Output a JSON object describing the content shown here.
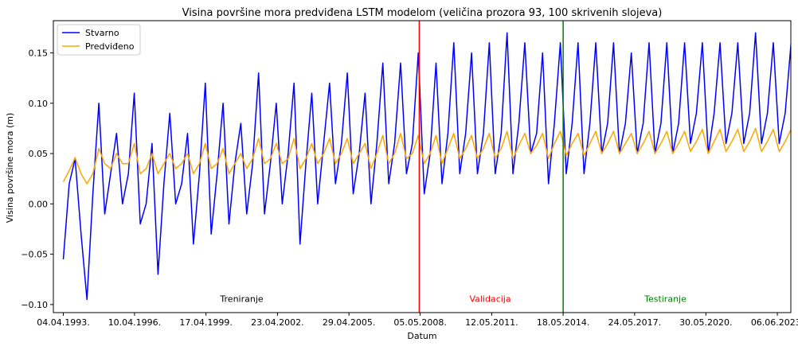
{
  "chart_data": {
    "type": "line",
    "title": "Visina površine mora predviđena LSTM modelom (veličina prozora 93, 100 skrivenih slojeva)",
    "xlabel": "Datum",
    "ylabel": "Visina površine mora (m)",
    "xlim": [
      "1992-11-01",
      "2023-12-31"
    ],
    "ylim": [
      -0.108,
      0.182
    ],
    "x_ticks": [
      "04.04.1993.",
      "10.04.1996.",
      "17.04.1999.",
      "23.04.2002.",
      "29.04.2005.",
      "05.05.2008.",
      "12.05.2011.",
      "18.05.2014.",
      "24.05.2017.",
      "30.05.2020.",
      "06.06.2023."
    ],
    "y_ticks": [
      "−0.10",
      "−0.05",
      "0.00",
      "0.05",
      "0.10",
      "0.15"
    ],
    "y_tick_values": [
      -0.1,
      -0.05,
      0.0,
      0.05,
      0.1,
      0.15
    ],
    "x_tick_years": [
      1993.26,
      1996.27,
      1999.29,
      2002.31,
      2005.33,
      2008.34,
      2011.36,
      2014.38,
      2017.4,
      2020.41,
      2023.43
    ],
    "legend": {
      "position": "top-left",
      "entries": [
        "Stvarno",
        "Predviđeno"
      ]
    },
    "grid": false,
    "series": [
      {
        "name": "Stvarno",
        "color": "#0000ff",
        "sample_step_years": 0.25,
        "x_start_year": 1993.26,
        "values": [
          -0.055,
          0.02,
          0.045,
          -0.03,
          -0.095,
          0.01,
          0.1,
          -0.01,
          0.03,
          0.07,
          0.0,
          0.03,
          0.11,
          -0.02,
          0.0,
          0.06,
          -0.07,
          0.02,
          0.09,
          0.0,
          0.02,
          0.07,
          -0.04,
          0.03,
          0.12,
          -0.03,
          0.03,
          0.1,
          -0.02,
          0.04,
          0.08,
          -0.01,
          0.04,
          0.13,
          -0.01,
          0.04,
          0.1,
          0.0,
          0.05,
          0.12,
          -0.04,
          0.04,
          0.11,
          0.0,
          0.06,
          0.12,
          0.02,
          0.06,
          0.13,
          0.01,
          0.05,
          0.11,
          0.0,
          0.06,
          0.14,
          0.02,
          0.06,
          0.14,
          0.03,
          0.06,
          0.15,
          0.01,
          0.05,
          0.14,
          0.02,
          0.07,
          0.16,
          0.03,
          0.07,
          0.15,
          0.03,
          0.07,
          0.16,
          0.03,
          0.07,
          0.17,
          0.03,
          0.08,
          0.16,
          0.05,
          0.07,
          0.15,
          0.02,
          0.08,
          0.16,
          0.03,
          0.08,
          0.16,
          0.03,
          0.08,
          0.16,
          0.05,
          0.08,
          0.16,
          0.05,
          0.08,
          0.15,
          0.05,
          0.08,
          0.16,
          0.05,
          0.08,
          0.16,
          0.05,
          0.08,
          0.16,
          0.06,
          0.09,
          0.16,
          0.05,
          0.09,
          0.16,
          0.06,
          0.09,
          0.16,
          0.06,
          0.09,
          0.17,
          0.06,
          0.09,
          0.16,
          0.06,
          0.09,
          0.16,
          0.06,
          0.09,
          0.09
        ]
      },
      {
        "name": "Predviđeno",
        "color": "#ffa500",
        "sample_step_years": 0.25,
        "x_start_year": 1993.26,
        "values": [
          0.022,
          0.033,
          0.046,
          0.03,
          0.02,
          0.03,
          0.055,
          0.04,
          0.035,
          0.05,
          0.04,
          0.04,
          0.06,
          0.03,
          0.035,
          0.05,
          0.03,
          0.04,
          0.05,
          0.035,
          0.04,
          0.05,
          0.03,
          0.04,
          0.06,
          0.035,
          0.04,
          0.055,
          0.03,
          0.04,
          0.05,
          0.035,
          0.045,
          0.065,
          0.04,
          0.045,
          0.06,
          0.04,
          0.045,
          0.065,
          0.035,
          0.045,
          0.06,
          0.04,
          0.05,
          0.065,
          0.04,
          0.05,
          0.065,
          0.04,
          0.05,
          0.06,
          0.035,
          0.05,
          0.068,
          0.04,
          0.05,
          0.07,
          0.045,
          0.05,
          0.068,
          0.04,
          0.05,
          0.068,
          0.04,
          0.055,
          0.07,
          0.045,
          0.055,
          0.068,
          0.045,
          0.055,
          0.07,
          0.045,
          0.055,
          0.072,
          0.045,
          0.058,
          0.07,
          0.05,
          0.058,
          0.07,
          0.045,
          0.06,
          0.072,
          0.048,
          0.06,
          0.07,
          0.048,
          0.06,
          0.072,
          0.05,
          0.06,
          0.072,
          0.05,
          0.06,
          0.07,
          0.05,
          0.06,
          0.072,
          0.05,
          0.06,
          0.072,
          0.05,
          0.06,
          0.072,
          0.052,
          0.062,
          0.074,
          0.05,
          0.062,
          0.074,
          0.052,
          0.062,
          0.074,
          0.052,
          0.062,
          0.075,
          0.052,
          0.062,
          0.074,
          0.052,
          0.062,
          0.074,
          0.052,
          0.062,
          0.058
        ]
      }
    ],
    "vertical_lines": [
      {
        "x_year": 2008.3,
        "color": "#ff0000"
      },
      {
        "x_year": 2014.38,
        "color": "#008000"
      }
    ],
    "annotations": [
      {
        "text": "Treniranje",
        "x_year": 2000.8,
        "y": -0.094,
        "color": "#000000"
      },
      {
        "text": "Validacija",
        "x_year": 2011.3,
        "y": -0.094,
        "color": "#ff0000"
      },
      {
        "text": "Testiranje",
        "x_year": 2018.7,
        "y": -0.094,
        "color": "#008000"
      }
    ]
  }
}
